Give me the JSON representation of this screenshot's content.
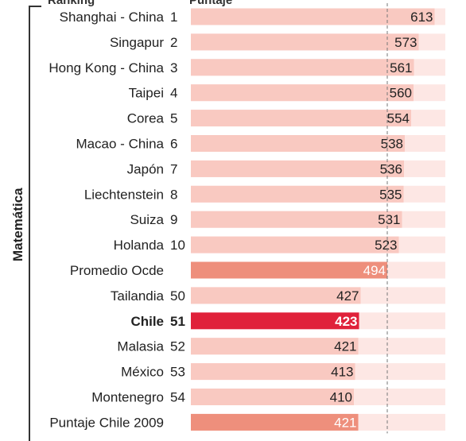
{
  "header": {
    "col_ranking": "Ranking",
    "col_score": "Puntaje"
  },
  "colors": {
    "track": "#fde7e4",
    "bar_light": "#f9c9c1",
    "bar_average": "#ee8f7c",
    "bar_highlight": "#e0213a",
    "bracket": "#333333",
    "dashed_line": "#777777"
  },
  "chart_data": {
    "type": "bar",
    "orientation": "horizontal",
    "group_label": "Matemática",
    "xlim": [
      0,
      640
    ],
    "reference_line": 494,
    "grid": false,
    "rows": [
      {
        "country": "Shanghai - China",
        "rank": "1",
        "value": 613,
        "style": "light"
      },
      {
        "country": "Singapur",
        "rank": "2",
        "value": 573,
        "style": "light"
      },
      {
        "country": "Hong Kong - China",
        "rank": "3",
        "value": 561,
        "style": "light"
      },
      {
        "country": "Taipei",
        "rank": "4",
        "value": 560,
        "style": "light"
      },
      {
        "country": "Corea",
        "rank": "5",
        "value": 554,
        "style": "light"
      },
      {
        "country": "Macao - China",
        "rank": "6",
        "value": 538,
        "style": "light"
      },
      {
        "country": "Japón",
        "rank": "7",
        "value": 536,
        "style": "light"
      },
      {
        "country": "Liechtenstein",
        "rank": "8",
        "value": 535,
        "style": "light"
      },
      {
        "country": "Suiza",
        "rank": "9",
        "value": 531,
        "style": "light"
      },
      {
        "country": "Holanda",
        "rank": "10",
        "value": 523,
        "style": "light"
      },
      {
        "country": "Promedio Ocde",
        "rank": "",
        "value": 494,
        "style": "average"
      },
      {
        "country": "Tailandia",
        "rank": "50",
        "value": 427,
        "style": "light"
      },
      {
        "country": "Chile",
        "rank": "51",
        "value": 423,
        "style": "highlight"
      },
      {
        "country": "Malasia",
        "rank": "52",
        "value": 421,
        "style": "light"
      },
      {
        "country": "México",
        "rank": "53",
        "value": 413,
        "style": "light"
      },
      {
        "country": "Montenegro",
        "rank": "54",
        "value": 410,
        "style": "light"
      },
      {
        "country": "Puntaje Chile 2009",
        "rank": "",
        "value": 421,
        "style": "average"
      }
    ]
  }
}
